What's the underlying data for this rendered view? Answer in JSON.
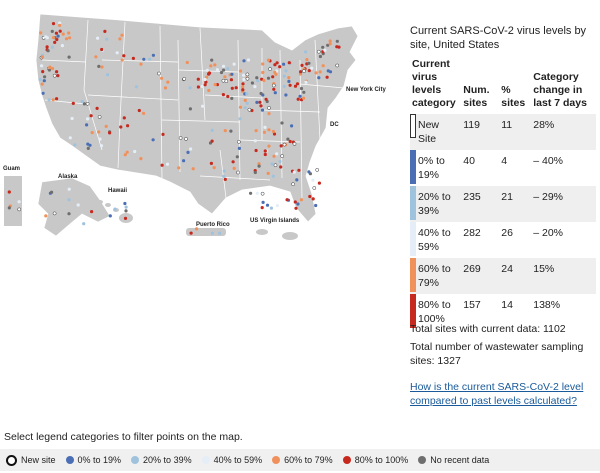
{
  "map": {
    "labels": {
      "new_york_city": "New York City",
      "dc": "DC",
      "guam": "Guam",
      "alaska": "Alaska",
      "hawaii": "Hawaii",
      "puerto_rico": "Puerto Rico",
      "us_virgin_islands": "US Virgin Islands"
    },
    "colors": {
      "land": "#c8c8c8",
      "border": "#ffffff"
    }
  },
  "legend": {
    "title": "Current SARS-CoV-2 virus levels by site, United States",
    "headers": {
      "category": "Current virus levels category",
      "sites": "Num. sites",
      "pct": "% sites",
      "change": "Category change in last 7 days"
    },
    "rows": [
      {
        "category": "New Site",
        "sites": "119",
        "pct": "11",
        "change": "28%",
        "color": "#ffffff"
      },
      {
        "category": "0% to 19%",
        "sites": "40",
        "pct": "4",
        "change": "– 40%",
        "color": "#4a6fb5"
      },
      {
        "category": "20% to 39%",
        "sites": "235",
        "pct": "21",
        "change": "– 29%",
        "color": "#9fc2dd"
      },
      {
        "category": "40% to 59%",
        "sites": "282",
        "pct": "26",
        "change": "– 20%",
        "color": "#e5eef6"
      },
      {
        "category": "60% to 79%",
        "sites": "269",
        "pct": "24",
        "change": "15%",
        "color": "#f0915c"
      },
      {
        "category": "80% to 100%",
        "sites": "157",
        "pct": "14",
        "change": "138%",
        "color": "#c62a1f"
      }
    ]
  },
  "totals": {
    "current": "Total sites with current data: 1102",
    "total": "Total number of wastewater sampling sites: 1327"
  },
  "link_text": "How is the current SARS-CoV-2 level compared to past levels calculated?",
  "filter": {
    "instruction": "Select legend categories to filter points on the map.",
    "items": [
      {
        "label": "New site",
        "color": "#ffffff",
        "style": "ring"
      },
      {
        "label": "0% to 19%",
        "color": "#4a6fb5"
      },
      {
        "label": "20% to 39%",
        "color": "#9fc2dd"
      },
      {
        "label": "40% to 59%",
        "color": "#e5eef6"
      },
      {
        "label": "60% to 79%",
        "color": "#f0915c"
      },
      {
        "label": "80% to 100%",
        "color": "#c62a1f"
      },
      {
        "label": "No recent data",
        "color": "#6e6e6e"
      }
    ]
  }
}
